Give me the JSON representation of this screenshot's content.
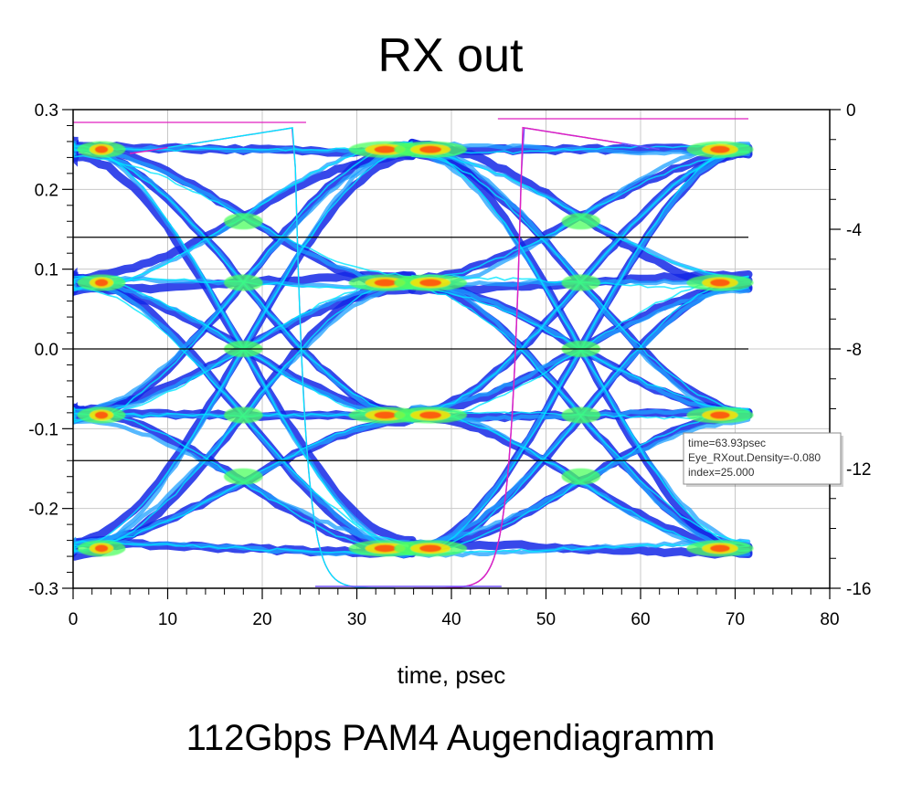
{
  "title": "RX out",
  "caption": "112Gbps PAM4 Augendiagramm",
  "colors": {
    "density_low": "#1428e6",
    "density_mid": "#1ea0ff",
    "density_high": "#00e6ff",
    "density_peak1": "#4cff60",
    "density_peak2": "#ffe000",
    "density_max": "#ff5010",
    "bathtub_left": "#e020c0",
    "bathtub_right": "#7050ff",
    "threshold_line": "#000000",
    "grid": "#c8c8c8"
  },
  "chart_data": {
    "type": "eye-diagram",
    "xlabel": "time, psec",
    "ylabel_left": "",
    "ylabel_right": "",
    "xlim": [
      0,
      80
    ],
    "ylim_left": [
      -0.3,
      0.3
    ],
    "ylim_right": [
      -16,
      0
    ],
    "x_ticks": [
      0,
      10,
      20,
      30,
      40,
      50,
      60,
      70,
      80
    ],
    "y_ticks_left": [
      0.3,
      0.2,
      0.1,
      0.0,
      -0.1,
      -0.2,
      -0.3
    ],
    "y_tick_labels_left": [
      "0.3",
      "0.2",
      "0.1",
      "0.0",
      "-0.1",
      "-0.2",
      "-0.3"
    ],
    "y_ticks_right": [
      0,
      -4,
      -8,
      -12,
      -16
    ],
    "grid": true,
    "signal": {
      "modulation": "PAM4",
      "unit_interval_ps": 35.7,
      "trace_span_ps": [
        0,
        71.4
      ],
      "crossing_times_ps": [
        18,
        53.7
      ],
      "eye_centers_ps": [
        36
      ],
      "levels": [
        0.25,
        0.083,
        -0.083,
        -0.25
      ],
      "thresholds": [
        0.14,
        0.0,
        -0.14
      ]
    },
    "bathtub": {
      "left_edge_ps": 25.6,
      "right_edge_ps": 45.3
    },
    "tooltip": {
      "lines": [
        "time=63.93psec",
        "Eye_RXout.Density=-0.080",
        "index=25.000"
      ]
    }
  }
}
